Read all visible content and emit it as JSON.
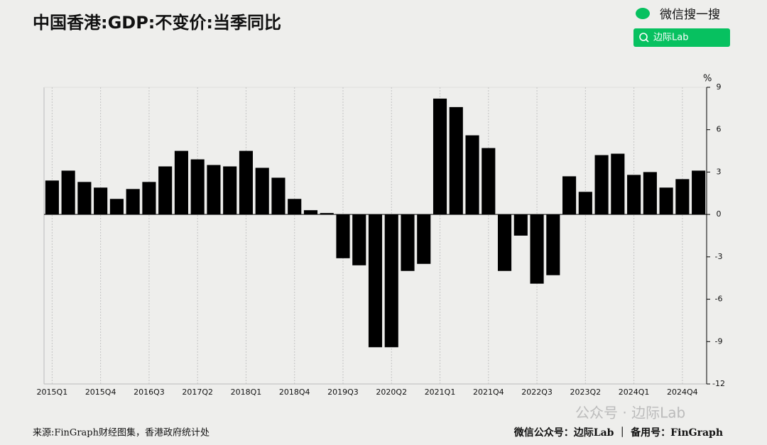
{
  "chart_data": {
    "type": "bar",
    "title": "中国香港:GDP:不变价:当季同比",
    "y_unit": "%",
    "categories": [
      "2015Q1",
      null,
      null,
      "2015Q4",
      null,
      null,
      "2016Q3",
      null,
      null,
      "2017Q2",
      null,
      null,
      "2018Q1",
      null,
      null,
      "2018Q4",
      null,
      null,
      "2019Q3",
      null,
      null,
      "2020Q2",
      null,
      null,
      "2021Q1",
      null,
      null,
      "2021Q4",
      null,
      null,
      "2022Q3",
      null,
      null,
      "2023Q2",
      null,
      null,
      "2024Q1",
      null,
      null,
      "2024Q4",
      null
    ],
    "values": [
      2.4,
      3.1,
      2.3,
      1.9,
      1.1,
      1.8,
      2.3,
      3.4,
      4.5,
      3.9,
      3.5,
      3.4,
      4.5,
      3.3,
      2.6,
      1.1,
      0.3,
      0.1,
      -3.1,
      -3.6,
      -9.4,
      -9.4,
      -4.0,
      -3.5,
      8.2,
      7.6,
      5.6,
      4.7,
      -4.0,
      -1.5,
      -4.9,
      -4.3,
      2.7,
      1.6,
      4.2,
      4.3,
      2.8,
      3.0,
      1.9,
      2.5,
      3.1
    ],
    "color": "#000000",
    "ylim": [
      -12,
      9
    ],
    "yticks": [
      -12,
      -9,
      -6,
      -3,
      0,
      3,
      6,
      9
    ],
    "grid": true
  },
  "header": {
    "search_brand": "微信搜一搜",
    "search_query": "边际Lab"
  },
  "footer": {
    "source": "来源:FinGraph财经图集，香港政府统计处",
    "credit": "微信公众号：边际Lab ｜ 备用号：FinGraph"
  },
  "watermark": "公众号 · 边际Lab"
}
